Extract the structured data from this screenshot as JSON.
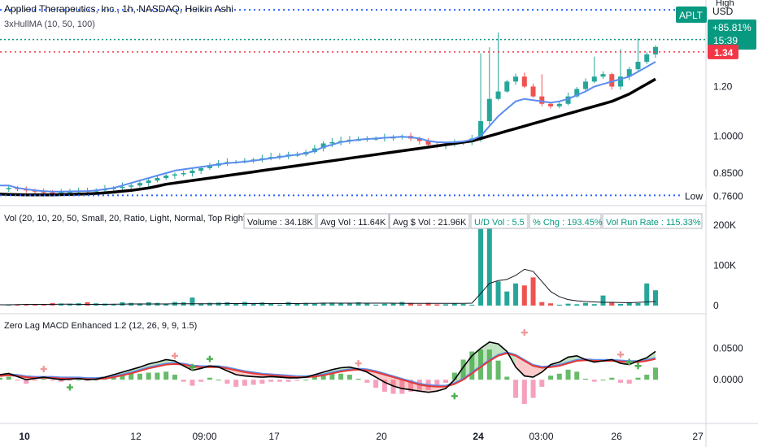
{
  "header": {
    "title": "Applied Therapeutics, Inc., 1h, NASDAQ, Heikin Ashi",
    "ma_label": "3xHullMA (10, 50, 100)",
    "high_label": "High"
  },
  "price_scale": {
    "currency": "USD",
    "ticks": [
      "1.20",
      "1.0000",
      "0.8500"
    ],
    "ticker_badge": "APLT",
    "change_badge": "+85.81%",
    "countdown": "15:39",
    "last_price": "1.34",
    "low_label": "Low",
    "low_value": "0.7600"
  },
  "volume_pane": {
    "label": "Vol (20, 10, 20, 50, Small, 20, Ratio, Light, Normal, Top Right)",
    "stats": [
      "Volume : 34.18K",
      "Avg Vol : 11.64K",
      "Avg $ Vol : 21.96K",
      "U/D Vol : 5.5",
      "% Chg : 193.45%",
      "Vol Run Rate : 115.33%"
    ],
    "ticks": [
      "200K",
      "100K",
      "0"
    ]
  },
  "macd_pane": {
    "label": "Zero Lag MACD Enhanced 1.2 (12, 26, 9, 9, 1.5)",
    "ticks": [
      "0.0500",
      "0.0000"
    ]
  },
  "time_axis": [
    "10",
    "12",
    "09:00",
    "17",
    "20",
    "24",
    "03:00",
    "26",
    "27"
  ],
  "colors": {
    "up": "#26a69a",
    "down": "#ef5350",
    "ma_fast": "#5b8def",
    "ma_slow": "#000000",
    "macd_signal": "#e53935",
    "macd_line": "#000000",
    "accent_blue": "#2962ff",
    "accent_red": "#f23645",
    "accent_green": "#089981"
  },
  "chart_data": [
    {
      "type": "candlestick",
      "title": "Applied Therapeutics, Inc., 1h, NASDAQ, Heikin Ashi",
      "y_ticks": [
        0.85,
        1.0,
        1.2
      ],
      "ylim": [
        0.735,
        1.53
      ],
      "high": 1.51,
      "low": 0.76,
      "last": 1.34,
      "price_path": [
        0.785,
        0.79,
        0.785,
        0.78,
        0.775,
        0.772,
        0.77,
        0.772,
        0.775,
        0.778,
        0.776,
        0.78,
        0.785,
        0.79,
        0.795,
        0.8,
        0.81,
        0.82,
        0.83,
        0.84,
        0.845,
        0.85,
        0.86,
        0.87,
        0.88,
        0.89,
        0.895,
        0.895,
        0.9,
        0.905,
        0.91,
        0.915,
        0.92,
        0.925,
        0.925,
        0.935,
        0.95,
        0.97,
        0.975,
        0.98,
        0.985,
        0.985,
        0.99,
        0.99,
        0.995,
        0.995,
        1.0,
        0.99,
        0.98,
        0.965,
        0.96,
        0.965,
        0.97,
        0.975,
        0.99,
        1.06,
        1.15,
        1.18,
        1.22,
        1.24,
        1.2,
        1.16,
        1.13,
        1.12,
        1.13,
        1.16,
        1.19,
        1.22,
        1.24,
        1.25,
        1.2,
        1.24,
        1.27,
        1.3,
        1.33,
        1.36
      ],
      "series": [
        {
          "name": "3xHullMA fast",
          "values": [
            0.8,
            0.8,
            0.79,
            0.785,
            0.78,
            0.777,
            0.775,
            0.775,
            0.776,
            0.777,
            0.777,
            0.78,
            0.785,
            0.79,
            0.8,
            0.81,
            0.82,
            0.83,
            0.84,
            0.85,
            0.86,
            0.865,
            0.87,
            0.875,
            0.88,
            0.885,
            0.89,
            0.893,
            0.896,
            0.9,
            0.905,
            0.91,
            0.915,
            0.92,
            0.925,
            0.93,
            0.94,
            0.955,
            0.965,
            0.975,
            0.98,
            0.985,
            0.988,
            0.99,
            0.993,
            0.995,
            0.997,
            0.995,
            0.99,
            0.98,
            0.975,
            0.974,
            0.975,
            0.978,
            0.985,
            1.0,
            1.04,
            1.08,
            1.11,
            1.14,
            1.15,
            1.145,
            1.14,
            1.135,
            1.14,
            1.15,
            1.165,
            1.18,
            1.2,
            1.21,
            1.22,
            1.23,
            1.24,
            1.26,
            1.28,
            1.3
          ]
        },
        {
          "name": "3xHullMA slow",
          "values": [
            0.765,
            0.764,
            0.763,
            0.762,
            0.762,
            0.762,
            0.762,
            0.763,
            0.764,
            0.765,
            0.766,
            0.768,
            0.77,
            0.773,
            0.777,
            0.78,
            0.785,
            0.79,
            0.797,
            0.805,
            0.81,
            0.815,
            0.82,
            0.825,
            0.83,
            0.835,
            0.84,
            0.845,
            0.85,
            0.855,
            0.86,
            0.865,
            0.87,
            0.875,
            0.88,
            0.885,
            0.89,
            0.895,
            0.9,
            0.905,
            0.91,
            0.915,
            0.92,
            0.925,
            0.93,
            0.935,
            0.94,
            0.945,
            0.95,
            0.955,
            0.96,
            0.965,
            0.97,
            0.975,
            0.98,
            0.99,
            1.0,
            1.01,
            1.02,
            1.03,
            1.04,
            1.05,
            1.06,
            1.07,
            1.08,
            1.09,
            1.1,
            1.11,
            1.12,
            1.13,
            1.14,
            1.155,
            1.17,
            1.19,
            1.21,
            1.23
          ]
        }
      ]
    },
    {
      "type": "bar",
      "title": "Vol",
      "y_ticks": [
        0,
        100000,
        200000
      ],
      "ylim": [
        0,
        230000
      ],
      "volume_line": [
        2000,
        2000,
        2500,
        3000,
        3000,
        3000,
        3000,
        3500,
        3500,
        3000,
        3000,
        3000,
        3000,
        3500,
        3500,
        4000,
        4000,
        4000,
        4000,
        4000,
        4500,
        4500,
        4500,
        4500,
        4500,
        4500,
        5000,
        5000,
        5000,
        5000,
        5000,
        5000,
        5000,
        5000,
        5000,
        5500,
        5500,
        6000,
        6000,
        6000,
        6000,
        6000,
        6000,
        6000,
        6000,
        6000,
        5500,
        5500,
        5500,
        5500,
        5500,
        5500,
        5500,
        5500,
        6000,
        30000,
        55000,
        62000,
        65000,
        75000,
        90000,
        85000,
        60000,
        35000,
        22000,
        15000,
        12000,
        10000,
        9000,
        8000,
        8000,
        7500,
        7000,
        8000,
        9000,
        10000
      ]
    },
    {
      "type": "line",
      "title": "Zero Lag MACD Enhanced 1.2",
      "y_ticks": [
        0.0,
        0.05
      ],
      "ylim": [
        -0.032,
        0.092
      ],
      "series": [
        {
          "name": "MACD",
          "values": [
            0.008,
            0.01,
            0.005,
            0.0,
            0.002,
            0.004,
            0.002,
            0.0,
            0.001,
            0.002,
            0.0,
            0.001,
            0.004,
            0.008,
            0.012,
            0.016,
            0.02,
            0.025,
            0.028,
            0.032,
            0.03,
            0.022,
            0.015,
            0.018,
            0.022,
            0.02,
            0.014,
            0.008,
            0.006,
            0.005,
            0.004,
            0.005,
            0.004,
            0.003,
            0.003,
            0.004,
            0.008,
            0.012,
            0.016,
            0.019,
            0.02,
            0.017,
            0.012,
            0.004,
            -0.004,
            -0.01,
            -0.014,
            -0.016,
            -0.018,
            -0.02,
            -0.018,
            -0.014,
            0.0,
            0.02,
            0.038,
            0.05,
            0.06,
            0.057,
            0.045,
            0.02,
            0.006,
            0.004,
            0.012,
            0.024,
            0.028,
            0.036,
            0.038,
            0.032,
            0.028,
            0.03,
            0.032,
            0.026,
            0.024,
            0.03,
            0.035,
            0.045
          ]
        },
        {
          "name": "Signal",
          "values": [
            0.006,
            0.007,
            0.006,
            0.004,
            0.003,
            0.003,
            0.003,
            0.002,
            0.002,
            0.002,
            0.001,
            0.001,
            0.002,
            0.004,
            0.007,
            0.01,
            0.014,
            0.018,
            0.021,
            0.024,
            0.025,
            0.024,
            0.021,
            0.02,
            0.02,
            0.02,
            0.018,
            0.015,
            0.012,
            0.01,
            0.008,
            0.007,
            0.006,
            0.005,
            0.004,
            0.004,
            0.005,
            0.007,
            0.01,
            0.013,
            0.015,
            0.016,
            0.015,
            0.012,
            0.008,
            0.004,
            0.0,
            -0.004,
            -0.008,
            -0.01,
            -0.011,
            -0.011,
            -0.007,
            0.0,
            0.01,
            0.02,
            0.03,
            0.038,
            0.042,
            0.038,
            0.03,
            0.022,
            0.019,
            0.02,
            0.022,
            0.026,
            0.03,
            0.031,
            0.03,
            0.03,
            0.03,
            0.029,
            0.028,
            0.028,
            0.03,
            0.033
          ]
        }
      ]
    }
  ]
}
